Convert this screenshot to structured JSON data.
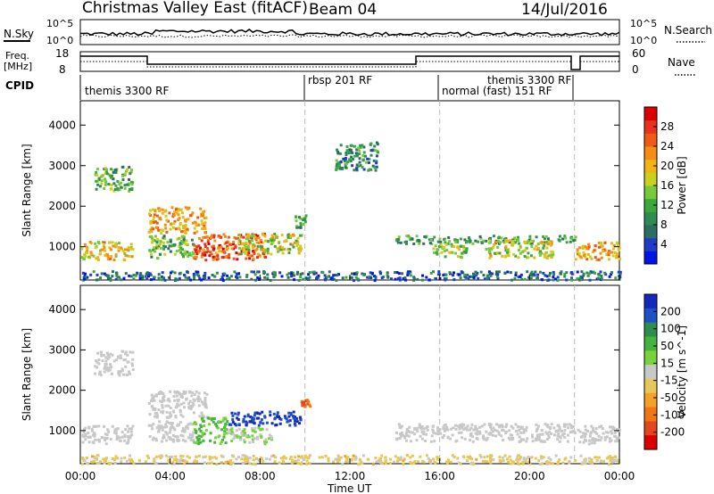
{
  "header": {
    "title": "Christmas Valley East (fitACF)",
    "beam": "Beam 04",
    "date": "14/Jul/2016"
  },
  "top_panels": {
    "nsky_label": "N.Sky",
    "nsearch_label": "N.Search",
    "freq_label_1": "Freq.",
    "freq_label_2": "[MHz]",
    "nave_label": "Nave",
    "cpid_label": "CPID",
    "noise_ticks": [
      "10^5",
      "10^0"
    ],
    "noise_ticks_right": [
      "10^5",
      "10^0"
    ],
    "freq_ticks": [
      "18",
      "8"
    ],
    "nave_ticks": [
      "60",
      "0"
    ],
    "cpid_segments": [
      {
        "label": "themis 3300 RF",
        "start_hour": 0
      },
      {
        "label": "rbsp 201 RF",
        "start_hour": 10
      },
      {
        "label": "normal (fast) 151 RF",
        "start_hour": 16
      },
      {
        "label": "themis 3300 RF",
        "start_hour": 22
      }
    ]
  },
  "chart_data": [
    {
      "type": "heatmap",
      "title": "",
      "parameter": "Power",
      "colorbar_label": "Power [dB]",
      "colorbar_ticks": [
        "28",
        "24",
        "20",
        "16",
        "12",
        "8",
        "4"
      ],
      "colorbar_range": [
        0,
        30
      ],
      "colors": [
        "#0014e6",
        "#1e3cc8",
        "#2c6e64",
        "#2e8c50",
        "#3ca83c",
        "#78c83c",
        "#c8d020",
        "#f0b414",
        "#f58c14",
        "#f05a14",
        "#e6321e",
        "#dc0000"
      ],
      "xlabel": "Time UT",
      "ylabel": "Slant Range [km]",
      "xticks": [
        "00:00",
        "04:00",
        "08:00",
        "12:00",
        "16:00",
        "20:00",
        "00:00"
      ],
      "yticks": [
        "1000",
        "2000",
        "3000",
        "4000"
      ],
      "xlim_hours": [
        0,
        24
      ],
      "ylim_km": [
        180,
        4600
      ],
      "scatter_regions": [
        {
          "t_start": 0.0,
          "t_end": 2.3,
          "r_low": 700,
          "r_high": 1150,
          "value": 18
        },
        {
          "t_start": 0.6,
          "t_end": 2.3,
          "r_low": 2400,
          "r_high": 3000,
          "value": 12
        },
        {
          "t_start": 3.0,
          "t_end": 5.6,
          "r_low": 1350,
          "r_high": 2000,
          "value": 20
        },
        {
          "t_start": 3.0,
          "t_end": 5.0,
          "r_low": 750,
          "r_high": 1300,
          "value": 12
        },
        {
          "t_start": 5.0,
          "t_end": 8.2,
          "r_low": 700,
          "r_high": 1350,
          "value": 24
        },
        {
          "t_start": 7.0,
          "t_end": 9.8,
          "r_low": 850,
          "r_high": 1350,
          "value": 16
        },
        {
          "t_start": 9.5,
          "t_end": 10.0,
          "r_low": 1500,
          "r_high": 1800,
          "value": 10
        },
        {
          "t_start": 11.3,
          "t_end": 13.2,
          "r_low": 2900,
          "r_high": 3600,
          "value": 8
        },
        {
          "t_start": 14.0,
          "t_end": 22.0,
          "r_low": 1100,
          "r_high": 1300,
          "value": 10
        },
        {
          "t_start": 15.6,
          "t_end": 17.2,
          "r_low": 750,
          "r_high": 1100,
          "value": 14
        },
        {
          "t_start": 18.0,
          "t_end": 21.0,
          "r_low": 750,
          "r_high": 1200,
          "value": 16
        },
        {
          "t_start": 22.0,
          "t_end": 24.0,
          "r_low": 700,
          "r_high": 1150,
          "value": 20
        },
        {
          "t_start": 0.0,
          "t_end": 24.0,
          "r_low": 200,
          "r_high": 420,
          "value": 6
        }
      ]
    },
    {
      "type": "heatmap",
      "title": "",
      "parameter": "Velocity",
      "colorbar_label": "Velocity [m s^-1]",
      "colorbar_ticks": [
        "200",
        "100",
        "50",
        "15",
        "-15",
        "-50",
        "-100",
        "-200"
      ],
      "colorbar_range": [
        -250,
        250
      ],
      "colors": [
        "#1428be",
        "#1e50c8",
        "#2e8c50",
        "#46b43c",
        "#78d23c",
        "#c8c8c8",
        "#e6c85a",
        "#f5a028",
        "#f07814",
        "#e6461e",
        "#dc0000"
      ],
      "xlabel": "Time UT",
      "ylabel": "Slant Range [km]",
      "xticks": [
        "00:00",
        "04:00",
        "08:00",
        "12:00",
        "16:00",
        "20:00",
        "00:00"
      ],
      "yticks": [
        "1000",
        "2000",
        "3000",
        "4000"
      ],
      "xlim_hours": [
        0,
        24
      ],
      "ylim_km": [
        180,
        4600
      ],
      "scatter_regions": [
        {
          "t_start": 0.0,
          "t_end": 2.3,
          "r_low": 700,
          "r_high": 1150,
          "value": 0,
          "ground_scatter": true
        },
        {
          "t_start": 0.6,
          "t_end": 2.3,
          "r_low": 2400,
          "r_high": 3000,
          "value": 0,
          "ground_scatter": true
        },
        {
          "t_start": 3.0,
          "t_end": 5.6,
          "r_low": 1350,
          "r_high": 2000,
          "value": 0,
          "ground_scatter": true
        },
        {
          "t_start": 3.0,
          "t_end": 5.0,
          "r_low": 750,
          "r_high": 1300,
          "value": 0,
          "ground_scatter": true
        },
        {
          "t_start": 5.0,
          "t_end": 6.5,
          "r_low": 700,
          "r_high": 1350,
          "value": 80
        },
        {
          "t_start": 6.5,
          "t_end": 9.8,
          "r_low": 1150,
          "r_high": 1500,
          "value": 200
        },
        {
          "t_start": 6.5,
          "t_end": 8.5,
          "r_low": 700,
          "r_high": 1100,
          "value": 30
        },
        {
          "t_start": 9.8,
          "t_end": 10.2,
          "r_low": 1600,
          "r_high": 1800,
          "value": -150
        },
        {
          "t_start": 14.0,
          "t_end": 22.0,
          "r_low": 750,
          "r_high": 1200,
          "value": 0,
          "ground_scatter": true
        },
        {
          "t_start": 22.0,
          "t_end": 24.0,
          "r_low": 700,
          "r_high": 1150,
          "value": 0,
          "ground_scatter": true
        },
        {
          "t_start": 0.0,
          "t_end": 24.0,
          "r_low": 200,
          "r_high": 420,
          "value": -40
        }
      ]
    }
  ]
}
